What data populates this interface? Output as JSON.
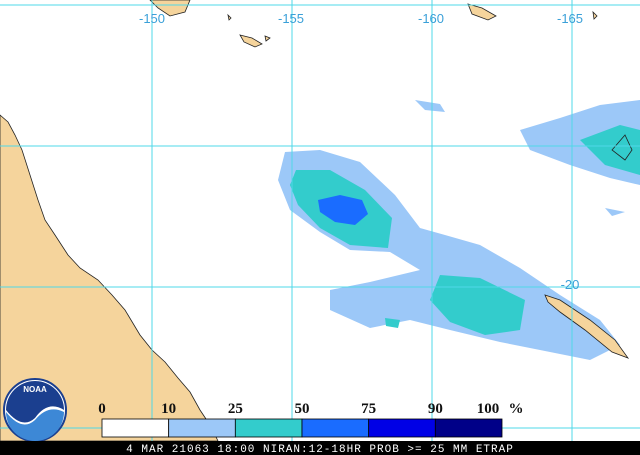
{
  "map": {
    "longitude_labels": [
      "-150",
      "-155",
      "-160",
      "-165"
    ],
    "latitude_labels": [
      "-20"
    ],
    "logo": "NOAA",
    "legend": {
      "labels": [
        0,
        10,
        25,
        50,
        75,
        90,
        100
      ],
      "unit": "%",
      "colors": [
        "#ffffff",
        "#9cc8f8",
        "#33cccc",
        "#1a6cff",
        "#0000e6",
        "#000088"
      ]
    },
    "footer": "4 MAR 21063 18:00 NIRAN:12-18HR PROB >= 25 MM ETRAP"
  }
}
